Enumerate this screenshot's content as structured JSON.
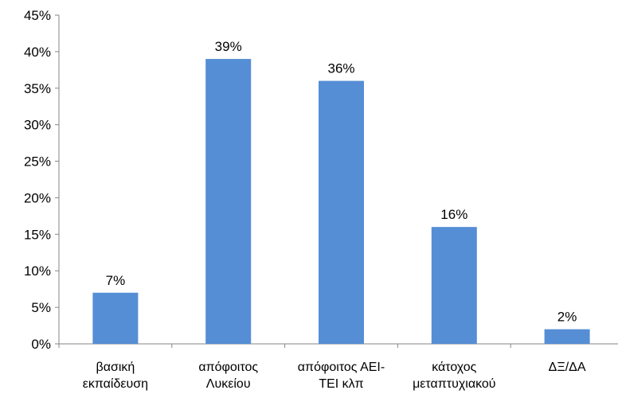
{
  "chart_data": {
    "type": "bar",
    "categories": [
      [
        "βασική",
        "εκπαίδευση"
      ],
      [
        "απόφοιτος",
        "Λυκείου"
      ],
      [
        "απόφοιτος ΑΕΙ-",
        "ΤΕΙ κλπ"
      ],
      [
        "κάτοχος",
        "μεταπτυχιακού"
      ],
      [
        "ΔΞ/ΔΑ"
      ]
    ],
    "values": [
      7,
      39,
      36,
      16,
      2
    ],
    "value_labels": [
      "7%",
      "39%",
      "36%",
      "16%",
      "2%"
    ],
    "y_ticks": [
      0,
      5,
      10,
      15,
      20,
      25,
      30,
      35,
      40,
      45
    ],
    "y_tick_labels": [
      "0%",
      "5%",
      "10%",
      "15%",
      "20%",
      "25%",
      "30%",
      "35%",
      "40%",
      "45%"
    ],
    "ylim": [
      0,
      45
    ],
    "grid": false,
    "legend": "none",
    "title": "",
    "xlabel": "",
    "ylabel": "",
    "bar_color": "#558ED5"
  }
}
